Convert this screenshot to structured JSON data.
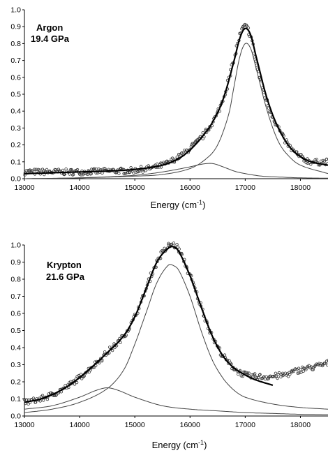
{
  "chart_data": [
    {
      "type": "scatter",
      "annotation": [
        "Argon",
        "19.4 GPa"
      ],
      "xlabel": "Energy (cm",
      "xlabel_sup": "-1",
      "xlabel_end": ")",
      "xlim": [
        13000,
        18500
      ],
      "ylim": [
        0,
        1.0
      ],
      "xticks": [
        13000,
        14000,
        15000,
        16000,
        17000,
        18000
      ],
      "yticks": [
        0,
        0.1,
        0.2,
        0.3,
        0.4,
        0.5,
        0.6,
        0.7,
        0.8,
        0.9,
        1.0
      ],
      "ytick_labels": [
        "0.0",
        "0.1",
        "0.2",
        "0.3",
        "0.4",
        "0.5",
        "0.6",
        "0.7",
        "0.8",
        "0.9",
        "1.0"
      ],
      "grid": false,
      "series": [
        {
          "style": "points",
          "x": [
            13000,
            13500,
            14000,
            14500,
            15000,
            15500,
            15800,
            16000,
            16200,
            16400,
            16600,
            16800,
            16900,
            17000,
            17100,
            17200,
            17400,
            17600,
            17800,
            18000,
            18200,
            18500
          ],
          "y": [
            0.04,
            0.04,
            0.04,
            0.045,
            0.05,
            0.08,
            0.13,
            0.18,
            0.24,
            0.33,
            0.47,
            0.71,
            0.85,
            0.9,
            0.84,
            0.68,
            0.45,
            0.3,
            0.19,
            0.13,
            0.1,
            0.1
          ]
        },
        {
          "style": "bold-line",
          "x": [
            13000,
            13500,
            14000,
            14500,
            15000,
            15500,
            15800,
            16000,
            16200,
            16400,
            16600,
            16800,
            16900,
            17000,
            17100,
            17200,
            17400,
            17600,
            17800,
            18000,
            18200,
            18500
          ],
          "y": [
            0.03,
            0.035,
            0.04,
            0.045,
            0.055,
            0.08,
            0.12,
            0.17,
            0.24,
            0.33,
            0.47,
            0.7,
            0.83,
            0.89,
            0.85,
            0.72,
            0.47,
            0.3,
            0.19,
            0.13,
            0.1,
            0.08
          ]
        },
        {
          "style": "thin-line",
          "x": [
            13000,
            14000,
            15000,
            15500,
            16000,
            16300,
            16500,
            16700,
            16800,
            16900,
            17000,
            17100,
            17200,
            17400,
            17600,
            17800,
            18000,
            18500
          ],
          "y": [
            0.0,
            0.005,
            0.015,
            0.025,
            0.06,
            0.12,
            0.2,
            0.38,
            0.55,
            0.72,
            0.8,
            0.77,
            0.65,
            0.4,
            0.22,
            0.13,
            0.08,
            0.03
          ]
        },
        {
          "style": "thin-line",
          "x": [
            13000,
            14000,
            15000,
            15500,
            16000,
            16200,
            16400,
            16600,
            16800,
            17000,
            17300,
            17600,
            18000,
            18500
          ],
          "y": [
            0.0,
            0.005,
            0.02,
            0.04,
            0.07,
            0.085,
            0.09,
            0.07,
            0.045,
            0.03,
            0.015,
            0.01,
            0.005,
            0.003
          ]
        }
      ]
    },
    {
      "type": "scatter",
      "annotation": [
        "Krypton",
        "21.6 GPa"
      ],
      "xlabel": "Energy (cm",
      "xlabel_sup": "-1",
      "xlabel_end": ")",
      "xlim": [
        13000,
        18500
      ],
      "ylim": [
        0,
        1.0
      ],
      "xticks": [
        13000,
        14000,
        15000,
        16000,
        17000,
        18000
      ],
      "yticks": [
        0,
        0.1,
        0.2,
        0.3,
        0.4,
        0.5,
        0.6,
        0.7,
        0.8,
        0.9,
        1.0
      ],
      "ytick_labels": [
        "0.0",
        "0.1",
        "0.2",
        "0.3",
        "0.4",
        "0.5",
        "0.6",
        "0.7",
        "0.8",
        "0.9",
        "1.0"
      ],
      "grid": false,
      "series": [
        {
          "style": "points",
          "x": [
            13000,
            13300,
            13600,
            13900,
            14200,
            14500,
            14800,
            15000,
            15200,
            15400,
            15600,
            15700,
            15800,
            16000,
            16200,
            16400,
            16600,
            16800,
            17000,
            17200,
            17400,
            17700,
            18000,
            18300,
            18500
          ],
          "y": [
            0.08,
            0.1,
            0.14,
            0.2,
            0.28,
            0.37,
            0.47,
            0.58,
            0.74,
            0.9,
            0.99,
            1.0,
            0.97,
            0.82,
            0.64,
            0.47,
            0.35,
            0.28,
            0.24,
            0.23,
            0.23,
            0.24,
            0.27,
            0.29,
            0.31
          ]
        },
        {
          "style": "bold-line",
          "x": [
            13000,
            13300,
            13600,
            13900,
            14200,
            14500,
            14800,
            15000,
            15200,
            15400,
            15600,
            15700,
            15800,
            16000,
            16200,
            16400,
            16600,
            16800,
            17000,
            17200,
            17500
          ],
          "y": [
            0.08,
            0.1,
            0.14,
            0.2,
            0.28,
            0.37,
            0.47,
            0.58,
            0.74,
            0.9,
            0.98,
            0.99,
            0.96,
            0.82,
            0.64,
            0.47,
            0.35,
            0.28,
            0.24,
            0.21,
            0.18
          ]
        },
        {
          "style": "thin-line",
          "x": [
            13000,
            13500,
            14000,
            14500,
            14800,
            15000,
            15200,
            15400,
            15600,
            15700,
            15800,
            16000,
            16200,
            16400,
            16600,
            16800,
            17000,
            17500,
            18000,
            18500
          ],
          "y": [
            0.02,
            0.04,
            0.08,
            0.16,
            0.27,
            0.42,
            0.6,
            0.78,
            0.88,
            0.88,
            0.85,
            0.7,
            0.5,
            0.33,
            0.22,
            0.15,
            0.11,
            0.07,
            0.05,
            0.04
          ]
        },
        {
          "style": "thin-line",
          "x": [
            13000,
            13500,
            14000,
            14300,
            14500,
            14700,
            15000,
            15500,
            16000,
            16500,
            17000,
            17500,
            18000,
            18500
          ],
          "y": [
            0.04,
            0.06,
            0.11,
            0.15,
            0.165,
            0.15,
            0.11,
            0.06,
            0.04,
            0.03,
            0.02,
            0.015,
            0.01,
            0.008
          ]
        }
      ]
    }
  ]
}
